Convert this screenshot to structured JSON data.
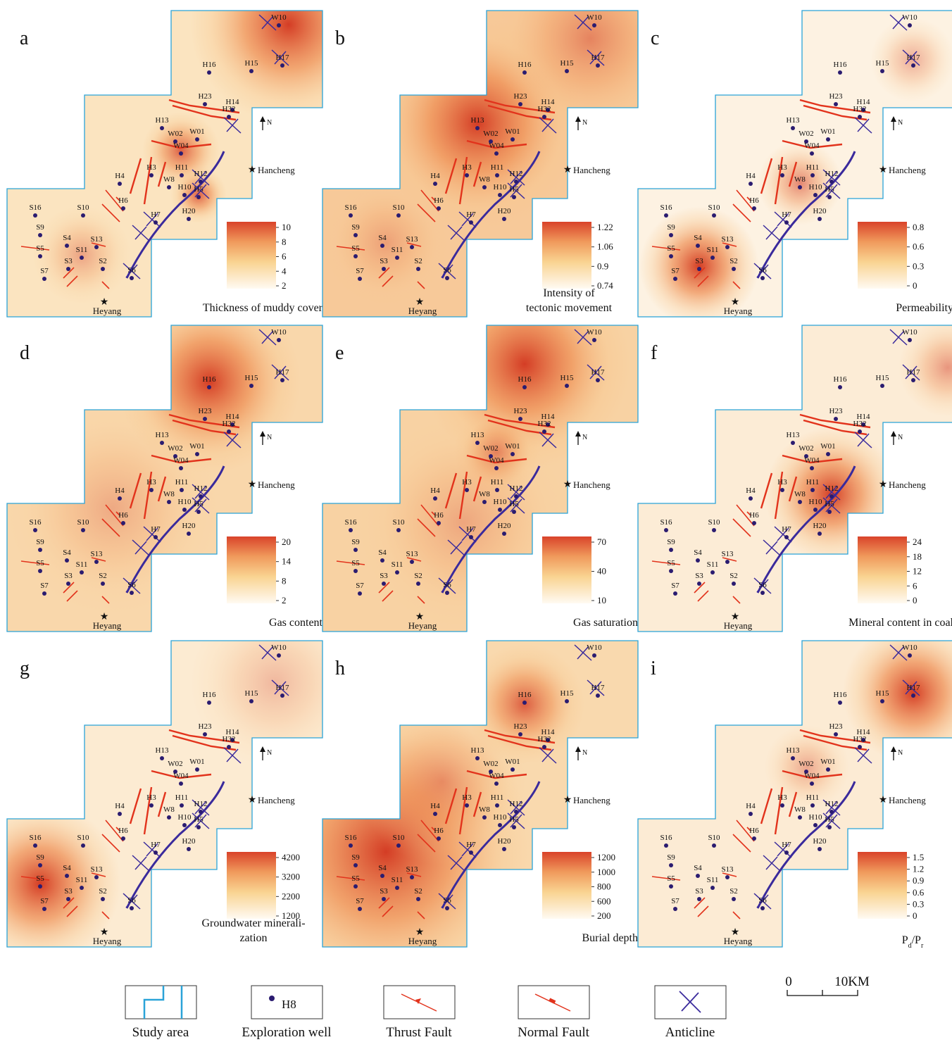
{
  "panels": [
    {
      "letter": "a",
      "title": [
        "Thickness of muddy cover"
      ],
      "colorbar": [
        10,
        8,
        6,
        4,
        2
      ]
    },
    {
      "letter": "b",
      "title": [
        "Intensity of",
        "tectonic movement"
      ],
      "colorbar": [
        1.22,
        1.06,
        0.9,
        0.74
      ]
    },
    {
      "letter": "c",
      "title": [
        "Permeability"
      ],
      "colorbar": [
        0.8,
        0.6,
        0.3,
        0
      ]
    },
    {
      "letter": "d",
      "title": [
        "Gas content"
      ],
      "colorbar": [
        20,
        14,
        8,
        2
      ]
    },
    {
      "letter": "e",
      "title": [
        "Gas saturation"
      ],
      "colorbar": [
        70,
        40,
        10
      ]
    },
    {
      "letter": "f",
      "title": [
        "Mineral content in coal"
      ],
      "colorbar": [
        24,
        18,
        12,
        6,
        0
      ]
    },
    {
      "letter": "g",
      "title": [
        "Groundwater minerali-",
        "zation"
      ],
      "colorbar": [
        4200,
        3200,
        2200,
        1200
      ]
    },
    {
      "letter": "h",
      "title": [
        "Burial depth"
      ],
      "colorbar": [
        1200,
        1000,
        800,
        600,
        200
      ]
    },
    {
      "letter": "i",
      "title_parts": [
        "P",
        "d",
        "/P",
        "r"
      ],
      "colorbar": [
        1.5,
        1.2,
        0.9,
        0.6,
        0.3,
        0
      ]
    }
  ],
  "wells": [
    "W10",
    "H17",
    "H16",
    "H15",
    "H23",
    "H14",
    "H32",
    "H13",
    "W02",
    "W01",
    "W04",
    "H3",
    "H11",
    "H12",
    "H4",
    "W8",
    "H10",
    "H5",
    "H6",
    "H7",
    "H20",
    "S16",
    "S10",
    "S9",
    "S4",
    "S13",
    "S5",
    "S11",
    "S3",
    "S2",
    "S7",
    "S6"
  ],
  "places": {
    "north": "N",
    "hancheng": "Hancheng",
    "heyang": "Heyang"
  },
  "legend": {
    "items": [
      "Study area",
      "Exploration well",
      "Thrust Fault",
      "Normal Fault",
      "Anticline"
    ],
    "well_example": "H8",
    "scale": [
      "0",
      "10KM"
    ]
  }
}
